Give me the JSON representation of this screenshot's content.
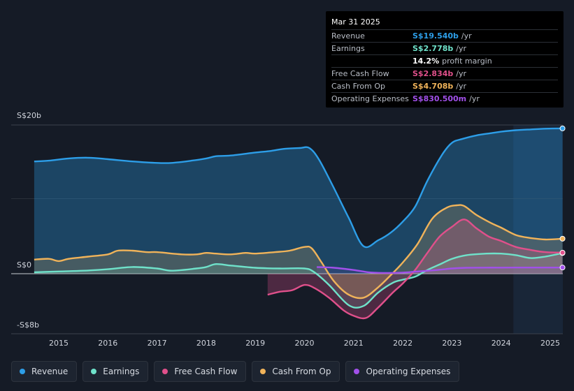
{
  "tooltip": {
    "date": "Mar 31 2025",
    "rows": [
      {
        "label": "Revenue",
        "value": "S$19.540b",
        "unit": "/yr",
        "color": "#2d9ee8"
      },
      {
        "label": "Earnings",
        "value": "S$2.778b",
        "unit": "/yr",
        "color": "#6fe2ca"
      },
      {
        "label": "",
        "value": "14.2%",
        "unit": "profit margin",
        "color": "#ffffff"
      },
      {
        "label": "Free Cash Flow",
        "value": "S$2.834b",
        "unit": "/yr",
        "color": "#e0508b"
      },
      {
        "label": "Cash From Op",
        "value": "S$4.708b",
        "unit": "/yr",
        "color": "#f0b35a"
      },
      {
        "label": "Operating Expenses",
        "value": "S$830.500m",
        "unit": "/yr",
        "color": "#a150ea"
      }
    ]
  },
  "legend": [
    {
      "label": "Revenue",
      "color": "#2d9ee8"
    },
    {
      "label": "Earnings",
      "color": "#6fe2ca"
    },
    {
      "label": "Free Cash Flow",
      "color": "#e0508b"
    },
    {
      "label": "Cash From Op",
      "color": "#f0b35a"
    },
    {
      "label": "Operating Expenses",
      "color": "#a150ea"
    }
  ],
  "chart_data": {
    "type": "area",
    "title": "",
    "xlabel": "",
    "ylabel": "",
    "y_unit": "SGD billions",
    "ylim": [
      -8,
      20
    ],
    "y_tick_labels": [
      {
        "value": 20,
        "label": "S$20b"
      },
      {
        "value": 0,
        "label": "S$0"
      },
      {
        "value": -8,
        "label": "-S$8b"
      }
    ],
    "xlim": [
      2014.4,
      2025.25
    ],
    "x_ticks": [
      2015,
      2016,
      2017,
      2018,
      2019,
      2020,
      2021,
      2022,
      2023,
      2024,
      2025
    ],
    "highlight_from": 2024.25,
    "series": [
      {
        "name": "Revenue",
        "color": "#2d9ee8",
        "x": [
          2014.5,
          2014.8,
          2015.2,
          2015.6,
          2016.0,
          2016.5,
          2017.0,
          2017.3,
          2017.7,
          2018.0,
          2018.2,
          2018.5,
          2019.0,
          2019.3,
          2019.6,
          2019.9,
          2020.1,
          2020.3,
          2020.6,
          2020.9,
          2021.2,
          2021.5,
          2021.75,
          2022.0,
          2022.25,
          2022.5,
          2022.8,
          2023.0,
          2023.2,
          2023.5,
          2023.8,
          2024.0,
          2024.3,
          2024.6,
          2024.9,
          2025.25
        ],
        "values": [
          15.1,
          15.2,
          15.5,
          15.6,
          15.4,
          15.1,
          14.9,
          14.9,
          15.2,
          15.5,
          15.8,
          15.9,
          16.3,
          16.5,
          16.8,
          16.9,
          16.9,
          15.3,
          11.5,
          7.5,
          3.7,
          4.5,
          5.5,
          7.0,
          9.0,
          12.5,
          16.0,
          17.6,
          18.1,
          18.6,
          18.9,
          19.1,
          19.3,
          19.4,
          19.5,
          19.54
        ]
      },
      {
        "name": "Earnings",
        "color": "#6fe2ca",
        "x": [
          2014.5,
          2015.0,
          2015.5,
          2016.0,
          2016.5,
          2017.0,
          2017.3,
          2017.8,
          2018.0,
          2018.2,
          2018.5,
          2019.0,
          2019.5,
          2020.0,
          2020.2,
          2020.5,
          2020.9,
          2021.2,
          2021.5,
          2021.8,
          2022.0,
          2022.25,
          2022.5,
          2022.8,
          2023.0,
          2023.3,
          2023.7,
          2024.0,
          2024.3,
          2024.6,
          2024.9,
          2025.25
        ],
        "values": [
          0.2,
          0.3,
          0.4,
          0.6,
          0.9,
          0.7,
          0.4,
          0.7,
          0.9,
          1.3,
          1.1,
          0.8,
          0.7,
          0.7,
          0.2,
          -1.5,
          -4.2,
          -4.3,
          -2.5,
          -1.2,
          -0.8,
          -0.4,
          0.5,
          1.4,
          2.0,
          2.5,
          2.7,
          2.7,
          2.5,
          2.1,
          2.3,
          2.778
        ]
      },
      {
        "name": "Free Cash Flow",
        "color": "#e0508b",
        "x": [
          2019.25,
          2019.5,
          2019.75,
          2020.0,
          2020.2,
          2020.5,
          2020.8,
          2021.0,
          2021.25,
          2021.5,
          2021.8,
          2022.0,
          2022.25,
          2022.5,
          2022.75,
          2023.0,
          2023.25,
          2023.5,
          2023.75,
          2024.0,
          2024.3,
          2024.6,
          2024.9,
          2025.25
        ],
        "values": [
          -2.8,
          -2.4,
          -2.2,
          -1.5,
          -1.9,
          -3.2,
          -4.9,
          -5.6,
          -5.9,
          -4.5,
          -2.5,
          -1.3,
          0.5,
          2.8,
          5.0,
          6.3,
          7.3,
          6.1,
          5.0,
          4.4,
          3.6,
          3.2,
          2.9,
          2.834
        ]
      },
      {
        "name": "Cash From Op",
        "color": "#f0b35a",
        "x": [
          2014.5,
          2014.8,
          2015.0,
          2015.2,
          2015.6,
          2016.0,
          2016.2,
          2016.5,
          2016.8,
          2017.0,
          2017.5,
          2017.8,
          2018.0,
          2018.2,
          2018.5,
          2018.8,
          2019.0,
          2019.4,
          2019.7,
          2020.0,
          2020.15,
          2020.35,
          2020.6,
          2020.9,
          2021.2,
          2021.5,
          2021.8,
          2022.0,
          2022.3,
          2022.6,
          2022.9,
          2023.1,
          2023.25,
          2023.5,
          2023.8,
          2024.0,
          2024.3,
          2024.6,
          2024.9,
          2025.25
        ],
        "values": [
          1.9,
          2.0,
          1.7,
          2.0,
          2.3,
          2.6,
          3.1,
          3.1,
          2.9,
          2.9,
          2.6,
          2.6,
          2.8,
          2.7,
          2.6,
          2.8,
          2.7,
          2.9,
          3.1,
          3.6,
          3.4,
          1.5,
          -1.0,
          -2.8,
          -3.2,
          -1.8,
          0.1,
          1.5,
          4.0,
          7.4,
          8.9,
          9.2,
          9.1,
          7.9,
          6.8,
          6.2,
          5.2,
          4.8,
          4.6,
          4.708
        ]
      },
      {
        "name": "Operating Expenses",
        "color": "#a150ea",
        "x": [
          2020.25,
          2020.6,
          2021.0,
          2021.3,
          2021.6,
          2022.0,
          2022.3,
          2022.7,
          2023.0,
          2023.3,
          2023.7,
          2024.0,
          2024.3,
          2024.6,
          2024.9,
          2025.25
        ],
        "values": [
          0.9,
          0.8,
          0.5,
          0.2,
          0.1,
          0.15,
          0.3,
          0.5,
          0.7,
          0.8,
          0.82,
          0.82,
          0.83,
          0.83,
          0.83,
          0.8305
        ]
      }
    ]
  }
}
